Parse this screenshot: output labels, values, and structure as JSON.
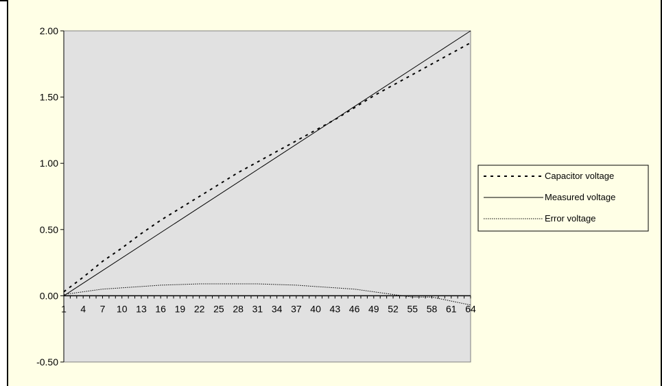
{
  "chart_data": {
    "type": "line",
    "title": "",
    "xlabel": "",
    "ylabel": "",
    "x_ticks": [
      "1",
      "4",
      "7",
      "10",
      "13",
      "16",
      "19",
      "22",
      "25",
      "28",
      "31",
      "34",
      "37",
      "40",
      "43",
      "46",
      "49",
      "52",
      "55",
      "58",
      "61",
      "64"
    ],
    "x_range": [
      1,
      64
    ],
    "y_ticks": [
      "2.00",
      "1.50",
      "1.00",
      "0.50",
      "0.00",
      "-0.50"
    ],
    "ylim": [
      -0.5,
      2.0
    ],
    "grid": false,
    "legend_placement": "right",
    "plot_background": "#e1e1e1",
    "series": [
      {
        "name": "Capacitor voltage",
        "style": "dashed",
        "x": [
          1,
          4,
          7,
          10,
          13,
          16,
          19,
          22,
          25,
          28,
          31,
          34,
          37,
          40,
          43,
          46,
          49,
          52,
          55,
          58,
          61,
          64
        ],
        "values": [
          0.03,
          0.14,
          0.26,
          0.36,
          0.47,
          0.57,
          0.66,
          0.75,
          0.84,
          0.93,
          1.01,
          1.09,
          1.17,
          1.25,
          1.33,
          1.42,
          1.51,
          1.59,
          1.67,
          1.75,
          1.83,
          1.91
        ]
      },
      {
        "name": "Measured voltage",
        "style": "solid",
        "x": [
          1,
          64
        ],
        "values": [
          0.0,
          2.0
        ]
      },
      {
        "name": "Error voltage",
        "style": "dotted",
        "x": [
          1,
          4,
          7,
          10,
          13,
          16,
          19,
          22,
          25,
          28,
          31,
          34,
          37,
          40,
          43,
          46,
          49,
          52,
          55,
          58,
          61,
          64
        ],
        "values": [
          0.01,
          0.03,
          0.05,
          0.06,
          0.07,
          0.08,
          0.085,
          0.09,
          0.09,
          0.09,
          0.09,
          0.085,
          0.08,
          0.07,
          0.06,
          0.05,
          0.03,
          0.01,
          -0.01,
          -0.01,
          -0.04,
          -0.07
        ]
      }
    ]
  }
}
